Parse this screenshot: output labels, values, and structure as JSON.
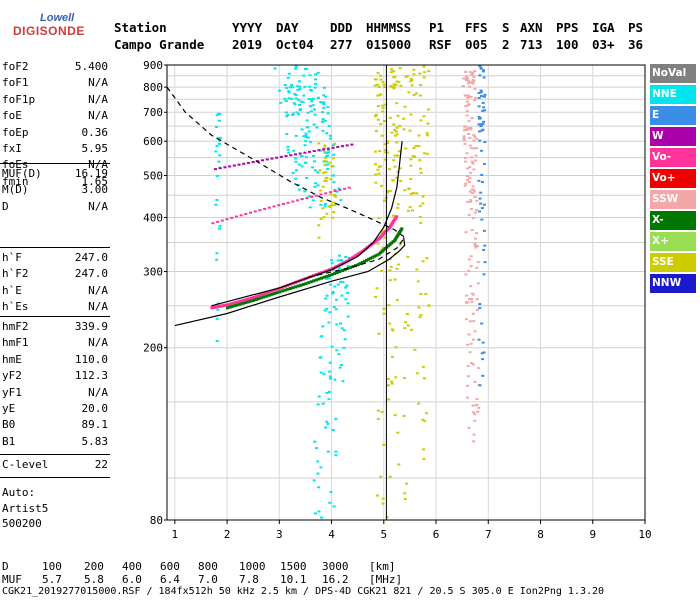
{
  "logo": {
    "line1": "Lowell",
    "line2": "DIGISONDE"
  },
  "header": {
    "labels": [
      "Station",
      "YYYY",
      "DAY",
      "DDD",
      "HHMMSS",
      "P1",
      "FFS",
      "S",
      "AXN",
      "PPS",
      "IGA",
      "PS"
    ],
    "values": [
      "Campo Grande",
      "2019",
      "Oct04",
      "277",
      "015000",
      "RSF",
      "005",
      "2",
      "713",
      "100",
      "03+",
      "36"
    ]
  },
  "params": {
    "g1": [
      [
        "foF2",
        "5.400"
      ],
      [
        "foF1",
        "N/A"
      ],
      [
        "foF1p",
        "N/A"
      ],
      [
        "foE",
        "N/A"
      ],
      [
        "foEp",
        "0.36"
      ],
      [
        "fxI",
        "5.95"
      ],
      [
        "foEs",
        "N/A"
      ],
      [
        "fmin",
        "1.65"
      ]
    ],
    "g2": [
      [
        "MUF(D)",
        "16.19"
      ],
      [
        "M(D)",
        "3.00"
      ],
      [
        "D",
        "N/A"
      ]
    ],
    "g3": [
      [
        "h`F",
        "247.0"
      ],
      [
        "h`F2",
        "247.0"
      ],
      [
        "h`E",
        "N/A"
      ],
      [
        "h`Es",
        "N/A"
      ]
    ],
    "g4": [
      [
        "hmF2",
        "339.9"
      ],
      [
        "hmF1",
        "N/A"
      ],
      [
        "hmE",
        "110.0"
      ],
      [
        "yF2",
        "112.3"
      ],
      [
        "yF1",
        "N/A"
      ],
      [
        "yE",
        "20.0"
      ],
      [
        "B0",
        "89.1"
      ],
      [
        "B1",
        "5.83"
      ]
    ],
    "g5": [
      [
        "C-level",
        "22"
      ]
    ]
  },
  "autoscaling": [
    "Auto:",
    "Artist5",
    "500200"
  ],
  "legend": [
    {
      "label": "NoVal",
      "color": "#808080"
    },
    {
      "label": "NNE",
      "color": "#00e5ee"
    },
    {
      "label": "E",
      "color": "#3a8ee6"
    },
    {
      "label": "W",
      "color": "#aa00aa"
    },
    {
      "label": "Vo-",
      "color": "#ff3399"
    },
    {
      "label": "Vo+",
      "color": "#ee0000"
    },
    {
      "label": "SSW",
      "color": "#f4a7a7"
    },
    {
      "label": "X-",
      "color": "#007700"
    },
    {
      "label": "X+",
      "color": "#99dd55"
    },
    {
      "label": "SSE",
      "color": "#cccc00"
    },
    {
      "label": "NNW",
      "color": "#1a1acc"
    }
  ],
  "chart_data": {
    "type": "scatter",
    "xlabel": "",
    "ylabel": "",
    "xlim": [
      0.85,
      10
    ],
    "ylim": [
      80,
      900
    ],
    "x_ticks": [
      1,
      2,
      3,
      4,
      5,
      6,
      7,
      8,
      9,
      10
    ],
    "y_ticks": [
      80,
      200,
      300,
      400,
      500,
      600,
      700,
      800,
      900
    ],
    "y_log": true,
    "vertical_marker_x": 5.05,
    "series": [
      {
        "name": "O-trace (Vo-)",
        "color": "#ff3399",
        "points": [
          [
            1.7,
            248
          ],
          [
            2.0,
            252
          ],
          [
            2.5,
            262
          ],
          [
            3.0,
            275
          ],
          [
            3.5,
            290
          ],
          [
            4.0,
            305
          ],
          [
            4.3,
            318
          ],
          [
            4.6,
            336
          ],
          [
            4.9,
            358
          ],
          [
            5.1,
            380
          ],
          [
            5.25,
            405
          ]
        ]
      },
      {
        "name": "X-trace (X-)",
        "color": "#007700",
        "points": [
          [
            2.0,
            248
          ],
          [
            2.5,
            258
          ],
          [
            3.0,
            270
          ],
          [
            3.5,
            282
          ],
          [
            4.0,
            296
          ],
          [
            4.5,
            312
          ],
          [
            4.9,
            330
          ],
          [
            5.2,
            355
          ],
          [
            5.35,
            380
          ]
        ]
      }
    ],
    "profile_solid_1": [
      [
        1.7,
        250
      ],
      [
        3.0,
        275
      ],
      [
        4.0,
        303
      ],
      [
        4.5,
        325
      ],
      [
        4.8,
        350
      ],
      [
        5.0,
        380
      ],
      [
        5.15,
        420
      ],
      [
        5.25,
        470
      ],
      [
        5.3,
        530
      ],
      [
        5.35,
        600
      ]
    ],
    "profile_solid_2": [
      [
        1.0,
        225
      ],
      [
        2.0,
        240
      ],
      [
        3.0,
        262
      ],
      [
        4.0,
        285
      ],
      [
        4.7,
        300
      ],
      [
        5.1,
        320
      ],
      [
        5.3,
        335
      ],
      [
        5.4,
        345
      ],
      [
        5.38,
        360
      ]
    ],
    "profile_dashed": [
      [
        0.85,
        800
      ],
      [
        1.2,
        700
      ],
      [
        1.7,
        620
      ],
      [
        2.5,
        545
      ],
      [
        3.2,
        485
      ],
      [
        3.8,
        445
      ],
      [
        4.3,
        420
      ],
      [
        4.8,
        395
      ],
      [
        5.2,
        375
      ],
      [
        5.4,
        360
      ],
      [
        5.25,
        340
      ],
      [
        4.9,
        320
      ],
      [
        4.3,
        305
      ],
      [
        3.5,
        290
      ]
    ]
  },
  "bottom": {
    "d_label": "D",
    "d_values": [
      "100",
      "200",
      "400",
      "600",
      "800",
      "1000",
      "1500",
      "3000",
      "[km]"
    ],
    "muf_label": "MUF",
    "muf_values": [
      "5.7",
      "5.8",
      "6.0",
      "6.4",
      "7.0",
      "7.8",
      "10.1",
      "16.2",
      "[MHz]"
    ],
    "footer": "CGK21_2019277015000.RSF / 184fx512h 50 kHz 2.5 km / DPS-4D CGK21 821 / 20.5 S 305.0 E Ion2Png 1.3.20"
  }
}
